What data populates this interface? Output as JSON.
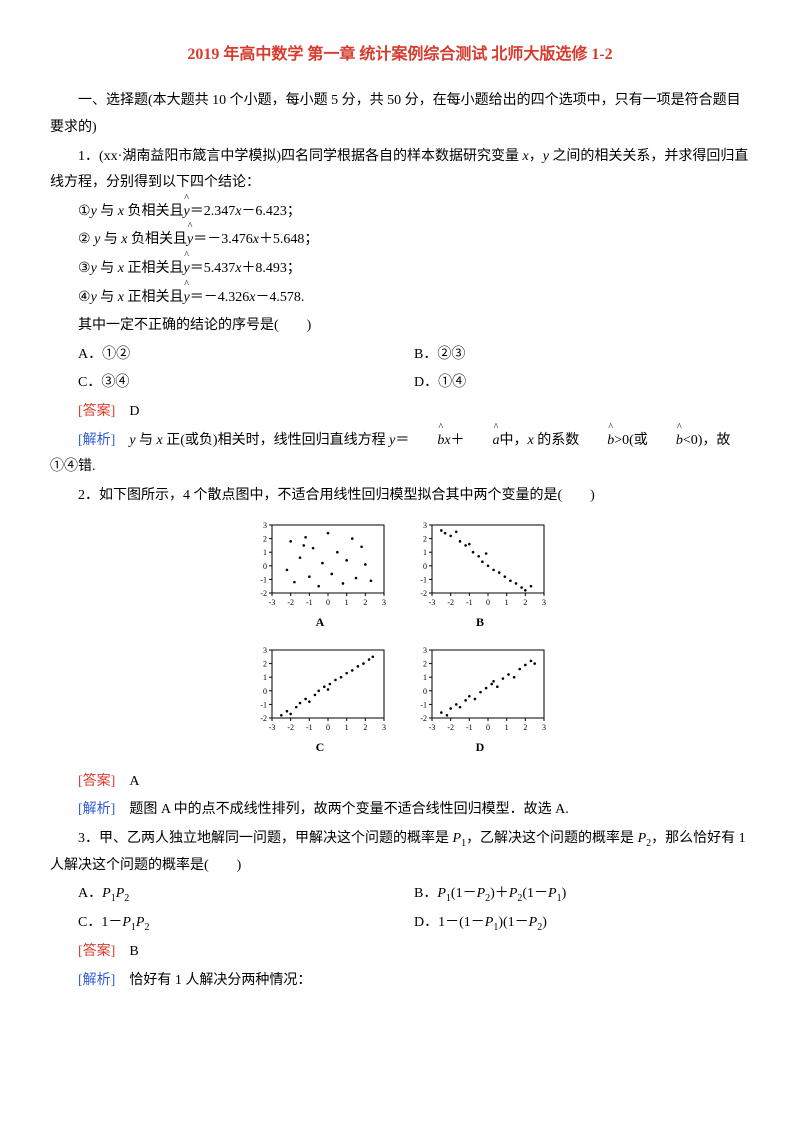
{
  "title": "2019 年高中数学 第一章 统计案例综合测试 北师大版选修 1-2",
  "section1_intro": "一、选择题(本大题共 10 个小题，每小题 5 分，共 50 分，在每小题给出的四个选项中，只有一项是符合题目要求的)",
  "q1": {
    "stem_a": "1．(xx·湖南益阳市箴言中学模拟)四名同学根据各自的样本数据研究变量 ",
    "var_x": "x",
    "sep1": "，",
    "var_y": "y",
    "stem_b": " 之间的相关关系，并求得回归直线方程，分别得到以下四个结论：",
    "l1_a": "①",
    "l1_y": "y",
    "l1_b": " 与 ",
    "l1_x": "x",
    "l1_c": " 负相关且",
    "l1_yhat": "y",
    "l1_d": "＝2.347",
    "l1_xvar": "x",
    "l1_e": "－6.423；",
    "l2_a": "② ",
    "l2_y": "y",
    "l2_b": " 与 ",
    "l2_x": "x",
    "l2_c": " 负相关且",
    "l2_yhat": "y",
    "l2_d": "＝－3.476",
    "l2_xvar": "x",
    "l2_e": "＋5.648；",
    "l3_a": "③",
    "l3_y": "y",
    "l3_b": " 与 ",
    "l3_x": "x",
    "l3_c": " 正相关且",
    "l3_yhat": "y",
    "l3_d": "＝5.437",
    "l3_xvar": "x",
    "l3_e": "＋8.493；",
    "l4_a": "④",
    "l4_y": "y",
    "l4_b": " 与 ",
    "l4_x": "x",
    "l4_c": " 正相关且",
    "l4_yhat": "y",
    "l4_d": "＝－4.326",
    "l4_xvar": "x",
    "l4_e": "－4.578.",
    "tail": "其中一定不正确的结论的序号是(　　)",
    "optA": "A．①②",
    "optB": "B．②③",
    "optC": "C．③④",
    "optD": "D．①④",
    "ans_label": "[答案]",
    "ans": "　D",
    "exp_label": "[解析]",
    "exp_a": "　",
    "exp_y": "y",
    "exp_b": " 与 ",
    "exp_x": "x",
    "exp_c": " 正(或负)相关时，线性回归直线方程 ",
    "exp_yv": "y",
    "exp_d": "＝",
    "exp_bhat1": "b",
    "exp_xv": "x",
    "exp_e": "＋",
    "exp_ahat": "a",
    "exp_f": "中，",
    "exp_xv2": "x",
    "exp_g": " 的系数",
    "exp_bhat2": "b",
    "exp_h": ">0(或",
    "exp_bhat3": "b",
    "exp_i": "<0)，故①④错."
  },
  "q2": {
    "stem": "2．如下图所示，4 个散点图中，不适合用线性回归模型拟合其中两个变量的是(　　)",
    "ans_label": "[答案]",
    "ans": "　A",
    "exp_label": "[解析]",
    "exp": "　题图 A 中的点不成线性排列，故两个变量不适合线性回归模型．故选 A.",
    "charts": {
      "labels": [
        "A",
        "B",
        "C",
        "D"
      ],
      "axis_ticks_x": [
        -3,
        -2,
        -1,
        0,
        1,
        2,
        3
      ],
      "axis_ticks_y": [
        -2,
        -1,
        0,
        1,
        2,
        3
      ],
      "colors": {
        "point": "#000",
        "axis": "#000",
        "border": "#000",
        "bg": "#fff"
      },
      "A": [
        [
          -2.2,
          -0.3
        ],
        [
          -2.0,
          1.8
        ],
        [
          -1.8,
          -1.2
        ],
        [
          -1.5,
          0.6
        ],
        [
          -1.2,
          2.1
        ],
        [
          -1.0,
          -0.8
        ],
        [
          -0.8,
          1.3
        ],
        [
          -0.5,
          -1.5
        ],
        [
          -0.3,
          0.2
        ],
        [
          0.0,
          2.4
        ],
        [
          0.2,
          -0.6
        ],
        [
          0.5,
          1.0
        ],
        [
          0.8,
          -1.3
        ],
        [
          1.0,
          0.4
        ],
        [
          1.3,
          2.0
        ],
        [
          1.5,
          -0.9
        ],
        [
          1.8,
          1.4
        ],
        [
          2.0,
          0.1
        ],
        [
          2.3,
          -1.1
        ],
        [
          -1.3,
          1.5
        ]
      ],
      "B": [
        [
          -2.5,
          2.6
        ],
        [
          -2.3,
          2.4
        ],
        [
          -2.0,
          2.2
        ],
        [
          -1.7,
          2.5
        ],
        [
          -1.5,
          1.8
        ],
        [
          -1.2,
          1.5
        ],
        [
          -1.0,
          1.6
        ],
        [
          -0.8,
          1.0
        ],
        [
          -0.5,
          0.7
        ],
        [
          -0.3,
          0.3
        ],
        [
          0.0,
          0.0
        ],
        [
          0.3,
          -0.3
        ],
        [
          0.6,
          -0.5
        ],
        [
          0.9,
          -0.8
        ],
        [
          1.2,
          -1.1
        ],
        [
          1.5,
          -1.3
        ],
        [
          1.8,
          -1.6
        ],
        [
          2.0,
          -1.8
        ],
        [
          2.3,
          -1.5
        ],
        [
          -0.1,
          0.9
        ]
      ],
      "C": [
        [
          -2.5,
          -1.8
        ],
        [
          -2.2,
          -1.5
        ],
        [
          -2.0,
          -1.7
        ],
        [
          -1.7,
          -1.2
        ],
        [
          -1.5,
          -0.9
        ],
        [
          -1.2,
          -0.6
        ],
        [
          -1.0,
          -0.8
        ],
        [
          -0.7,
          -0.3
        ],
        [
          -0.5,
          0.0
        ],
        [
          -0.2,
          0.3
        ],
        [
          0.1,
          0.5
        ],
        [
          0.4,
          0.8
        ],
        [
          0.7,
          1.0
        ],
        [
          1.0,
          1.3
        ],
        [
          1.3,
          1.5
        ],
        [
          1.6,
          1.8
        ],
        [
          1.9,
          2.0
        ],
        [
          2.2,
          2.3
        ],
        [
          2.4,
          2.5
        ],
        [
          0.0,
          0.1
        ]
      ],
      "D": [
        [
          -2.5,
          -1.6
        ],
        [
          -2.2,
          -1.8
        ],
        [
          -2.0,
          -1.3
        ],
        [
          -1.7,
          -1.0
        ],
        [
          -1.5,
          -1.2
        ],
        [
          -1.2,
          -0.7
        ],
        [
          -1.0,
          -0.4
        ],
        [
          -0.7,
          -0.6
        ],
        [
          -0.4,
          -0.1
        ],
        [
          -0.1,
          0.2
        ],
        [
          0.2,
          0.5
        ],
        [
          0.5,
          0.3
        ],
        [
          0.8,
          0.9
        ],
        [
          1.1,
          1.2
        ],
        [
          1.4,
          1.0
        ],
        [
          1.7,
          1.6
        ],
        [
          2.0,
          1.9
        ],
        [
          2.3,
          2.2
        ],
        [
          2.5,
          2.0
        ],
        [
          0.3,
          0.7
        ]
      ]
    }
  },
  "q3": {
    "stem_a": "3．甲、乙两人独立地解同一问题，甲解决这个问题的概率是 ",
    "p1a": "P",
    "sub1a": "1",
    "stem_b": "，乙解决这个问题的概率是 ",
    "p2a": "P",
    "sub2a": "2",
    "stem_c": "，那么恰好有 1 人解决这个问题的概率是(　　)",
    "optA_a": "A．",
    "optA_p1": "P",
    "optA_s1": "1",
    "optA_p2": "P",
    "optA_s2": "2",
    "optB_a": "B．",
    "optB_p1": "P",
    "optB_s1": "1",
    "optB_b": "(1－",
    "optB_p2": "P",
    "optB_s2": "2",
    "optB_c": ")＋",
    "optB_p3": "P",
    "optB_s3": "2",
    "optB_d": "(1－",
    "optB_p4": "P",
    "optB_s4": "1",
    "optB_e": ")",
    "optC_a": "C．1－",
    "optC_p1": "P",
    "optC_s1": "1",
    "optC_p2": "P",
    "optC_s2": "2",
    "optD_a": "D．1－(1－",
    "optD_p1": "P",
    "optD_s1": "1",
    "optD_b": ")(1－",
    "optD_p2": "P",
    "optD_s2": "2",
    "optD_c": ")",
    "ans_label": "[答案]",
    "ans": "　B",
    "exp_label": "[解析]",
    "exp": "　恰好有 1 人解决分两种情况："
  }
}
